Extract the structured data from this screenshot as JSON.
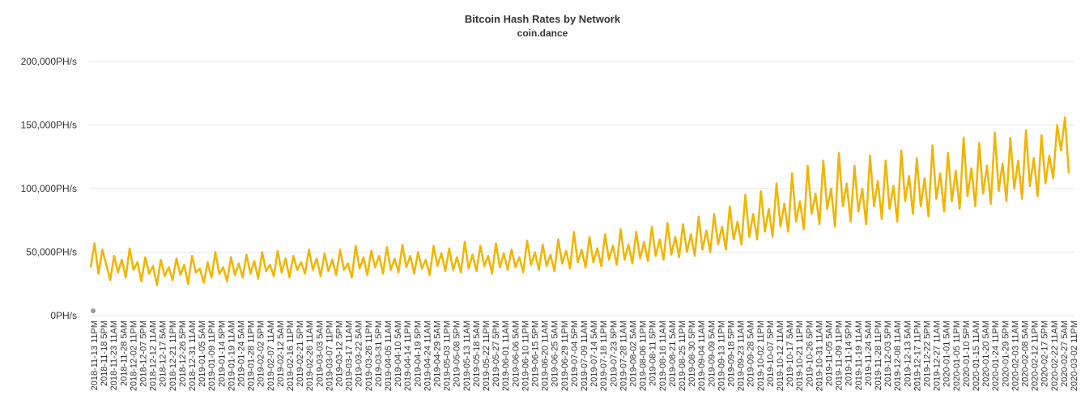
{
  "chart_data": {
    "type": "line",
    "title": "Bitcoin Hash Rates by Network",
    "subtitle": "coin.dance",
    "ylim": [
      0,
      200000
    ],
    "y_ticks": [
      0,
      50000,
      100000,
      150000,
      200000
    ],
    "y_tick_labels": [
      "0PH/s",
      "50,000PH/s",
      "100,000PH/s",
      "150,000PH/s",
      "200,000PH/s"
    ],
    "grid": true,
    "line_color": "#F2B400",
    "marker_color": "#999999",
    "x_tick_labels": [
      "2018-11-13 11PM",
      "2018-11-18 5PM",
      "2018-11-23 11AM",
      "2018-11-28 5AM",
      "2018-12-02 11PM",
      "2018-12-07 5PM",
      "2018-12-12 11AM",
      "2018-12-17 5AM",
      "2018-12-21 11PM",
      "2018-12-26 5PM",
      "2018-12-31 11AM",
      "2019-01-05 5AM",
      "2019-01-09 11PM",
      "2019-01-14 5PM",
      "2019-01-19 11AM",
      "2019-01-24 5AM",
      "2019-01-28 11PM",
      "2019-02-02 5PM",
      "2019-02-07 11AM",
      "2019-02-12 5AM",
      "2019-02-16 11PM",
      "2019-02-21 5PM",
      "2019-02-26 11AM",
      "2019-03-03 5AM",
      "2019-03-07 11PM",
      "2019-03-12 5PM",
      "2019-03-17 11AM",
      "2019-03-22 5AM",
      "2019-03-26 11PM",
      "2019-03-31 5PM",
      "2019-04-05 11AM",
      "2019-04-10 5AM",
      "2019-04-14 11PM",
      "2019-04-19 5PM",
      "2019-04-24 11AM",
      "2019-04-29 5AM",
      "2019-05-03 11PM",
      "2019-05-08 5PM",
      "2019-05-13 11AM",
      "2019-05-18 5AM",
      "2019-05-22 11PM",
      "2019-05-27 5PM",
      "2019-06-01 11AM",
      "2019-06-06 5AM",
      "2019-06-10 11PM",
      "2019-06-15 5PM",
      "2019-06-20 11AM",
      "2019-06-25 5AM",
      "2019-06-29 11PM",
      "2019-07-04 5PM",
      "2019-07-09 11AM",
      "2019-07-14 5AM",
      "2019-07-18 11PM",
      "2019-07-23 5PM",
      "2019-07-28 11AM",
      "2019-08-02 5AM",
      "2019-08-06 11PM",
      "2019-08-11 5PM",
      "2019-08-16 11AM",
      "2019-08-21 5AM",
      "2019-08-25 11PM",
      "2019-08-30 5PM",
      "2019-09-04 11AM",
      "2019-09-09 5AM",
      "2019-09-13 11PM",
      "2019-09-18 5PM",
      "2019-09-23 11AM",
      "2019-09-28 5AM",
      "2019-10-02 11PM",
      "2019-10-07 5PM",
      "2019-10-12 11AM",
      "2019-10-17 5AM",
      "2019-10-21 11PM",
      "2019-10-26 5PM",
      "2019-10-31 11AM",
      "2019-11-05 5AM",
      "2019-11-09 11PM",
      "2019-11-14 5PM",
      "2019-11-19 11AM",
      "2019-11-24 5AM",
      "2019-11-28 11PM",
      "2019-12-03 5PM",
      "2019-12-08 11AM",
      "2019-12-13 5AM",
      "2019-12-17 11PM",
      "2019-12-22 5PM",
      "2019-12-27 11AM",
      "2020-01-01 5AM",
      "2020-01-05 11PM",
      "2020-01-10 5PM",
      "2020-01-15 11AM",
      "2020-01-20 5AM",
      "2020-01-24 11PM",
      "2020-01-29 5PM",
      "2020-02-03 11AM",
      "2020-02-08 5AM",
      "2020-02-12 11PM",
      "2020-02-17 5PM",
      "2020-02-22 11AM",
      "2020-02-27 5AM",
      "2020-03-02 11PM"
    ],
    "series": [
      {
        "values": [
          38000,
          57000,
          33000,
          52000,
          40000,
          28000,
          47000,
          34000,
          44000,
          30000,
          53000,
          36000,
          42000,
          27000,
          46000,
          33000,
          39000,
          24000,
          44000,
          31000,
          38000,
          28000,
          45000,
          32000,
          40000,
          25000,
          47000,
          34000,
          37000,
          26000,
          42000,
          30000,
          50000,
          33000,
          38000,
          27000,
          46000,
          32000,
          41000,
          30000,
          48000,
          33000,
          43000,
          29000,
          50000,
          35000,
          40000,
          31000,
          51000,
          34000,
          45000,
          30000,
          47000,
          36000,
          42000,
          33000,
          52000,
          36000,
          45000,
          31000,
          49000,
          35000,
          44000,
          32000,
          52000,
          36000,
          41000,
          30000,
          55000,
          37000,
          46000,
          32000,
          51000,
          38000,
          47000,
          33000,
          54000,
          36000,
          45000,
          34000,
          56000,
          38000,
          47000,
          33000,
          50000,
          37000,
          44000,
          32000,
          55000,
          39000,
          49000,
          35000,
          53000,
          36000,
          46000,
          34000,
          58000,
          37000,
          48000,
          35000,
          55000,
          39000,
          47000,
          33000,
          57000,
          38000,
          49000,
          36000,
          52000,
          38000,
          46000,
          34000,
          59000,
          40000,
          50000,
          36000,
          56000,
          39000,
          48000,
          35000,
          60000,
          41000,
          51000,
          37000,
          66000,
          42000,
          52000,
          38000,
          62000,
          42000,
          53000,
          39000,
          64000,
          44000,
          55000,
          40000,
          68000,
          44000,
          56000,
          41000,
          66000,
          45000,
          58000,
          43000,
          70000,
          47000,
          60000,
          44000,
          73000,
          48000,
          62000,
          46000,
          72000,
          50000,
          64000,
          47000,
          78000,
          52000,
          67000,
          50000,
          80000,
          56000,
          70000,
          52000,
          86000,
          60000,
          74000,
          56000,
          95000,
          62000,
          80000,
          60000,
          98000,
          66000,
          84000,
          62000,
          104000,
          70000,
          88000,
          66000,
          112000,
          74000,
          90000,
          68000,
          118000,
          80000,
          96000,
          72000,
          122000,
          84000,
          100000,
          70000,
          128000,
          86000,
          104000,
          74000,
          118000,
          82000,
          100000,
          72000,
          126000,
          86000,
          106000,
          76000,
          122000,
          84000,
          102000,
          74000,
          130000,
          90000,
          110000,
          80000,
          124000,
          86000,
          108000,
          78000,
          134000,
          92000,
          112000,
          82000,
          128000,
          90000,
          114000,
          84000,
          140000,
          94000,
          116000,
          86000,
          136000,
          96000,
          118000,
          88000,
          144000,
          98000,
          120000,
          90000,
          140000,
          100000,
          122000,
          92000,
          146000,
          102000,
          124000,
          94000,
          142000,
          104000,
          126000,
          108000,
          150000,
          130000,
          156000,
          112000
        ]
      }
    ],
    "marker": {
      "x_index": 0,
      "y": 5000
    }
  }
}
